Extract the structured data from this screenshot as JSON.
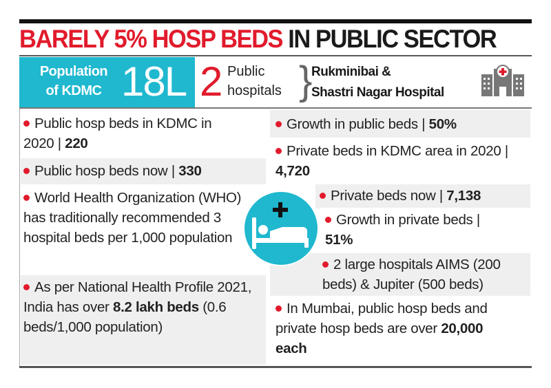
{
  "title": {
    "red": "BARELY 5% HOSP BEDS",
    "black": "IN PUBLIC SECTOR"
  },
  "header": {
    "population_label_1": "Population",
    "population_label_2": "of KDMC",
    "population_value": "18L",
    "public_count": "2",
    "public_label_1": "Public",
    "public_label_2": "hospitals",
    "hospital_1": "Rukminibai &",
    "hospital_2": "Shastri Nagar Hospital",
    "icon": "hospital-building-icon"
  },
  "left": [
    {
      "text": "Public hosp beds in KDMC in 2020 | ",
      "bold": "220"
    },
    {
      "text": "Public hosp beds now | ",
      "bold": "330"
    },
    {
      "text": "World Health Organization (WHO) has traditionally recommended 3 hospital beds per 1,000 population",
      "bold": ""
    },
    {
      "text": "As per National Health Profile 2021, India has over ",
      "bold": "8.2 lakh beds",
      "after": " (0.6 beds/1,000 population)"
    }
  ],
  "right": [
    {
      "text": "Growth in public beds | ",
      "bold": "50%"
    },
    {
      "text": "Private beds in KDMC area in 2020 | ",
      "bold": "4,720"
    },
    {
      "text": "Private beds now | ",
      "bold": "7,138"
    },
    {
      "text": "Growth in private beds | ",
      "bold": "51%"
    },
    {
      "text": "2 large hospitals AIMS (200 beds) & Jupiter (500 beds)",
      "bold": ""
    },
    {
      "text": "In Mumbai, public hosp beds and private hosp beds are over ",
      "bold": "20,000 each"
    }
  ],
  "center_icon": "hospital-bed-icon",
  "colors": {
    "red": "#e11b2c",
    "cyan": "#1fb8cf",
    "grey": "#efefef"
  }
}
